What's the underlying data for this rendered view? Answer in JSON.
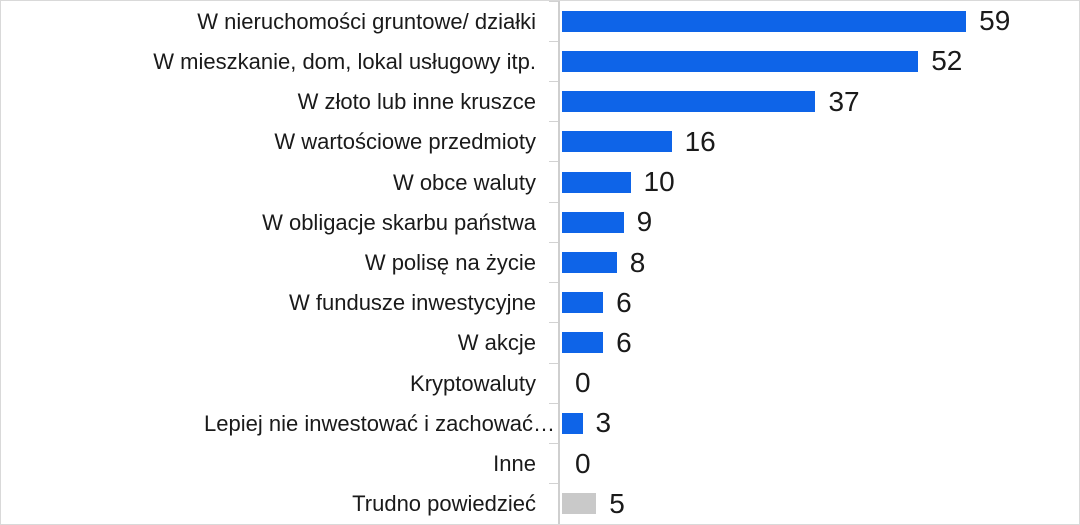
{
  "chart_data": {
    "type": "bar",
    "orientation": "horizontal",
    "title": "",
    "xlabel": "",
    "ylabel": "",
    "x_axis_visible": false,
    "gridlines": "none",
    "legend": "none",
    "value_labels_shown": true,
    "categories": [
      "W nieruchomości gruntowe/ działki",
      "W mieszkanie, dom, lokal usługowy itp.",
      "W złoto lub inne kruszce",
      "W wartościowe przedmioty",
      "W obce waluty",
      "W obligacje skarbu państwa",
      "W polisę na życie",
      "W fundusze inwestycyjne",
      "W akcje",
      "Kryptowaluty",
      "Lepiej nie inwestować i zachować…",
      "Inne",
      "Trudno powiedzieć"
    ],
    "values": [
      59,
      52,
      37,
      16,
      10,
      9,
      8,
      6,
      6,
      0,
      3,
      0,
      5
    ],
    "bar_colors": [
      "#0E64E8",
      "#0E64E8",
      "#0E64E8",
      "#0E64E8",
      "#0E64E8",
      "#0E64E8",
      "#0E64E8",
      "#0E64E8",
      "#0E64E8",
      "#0E64E8",
      "#0E64E8",
      "#0E64E8",
      "#C9C9C9"
    ]
  },
  "colors": {
    "bar_primary": "#0E64E8",
    "bar_muted": "#C9C9C9",
    "axis": "#CFCFCF",
    "text": "#1A1A1A",
    "background": "#FFFFFF",
    "border": "#D9D9D9"
  }
}
